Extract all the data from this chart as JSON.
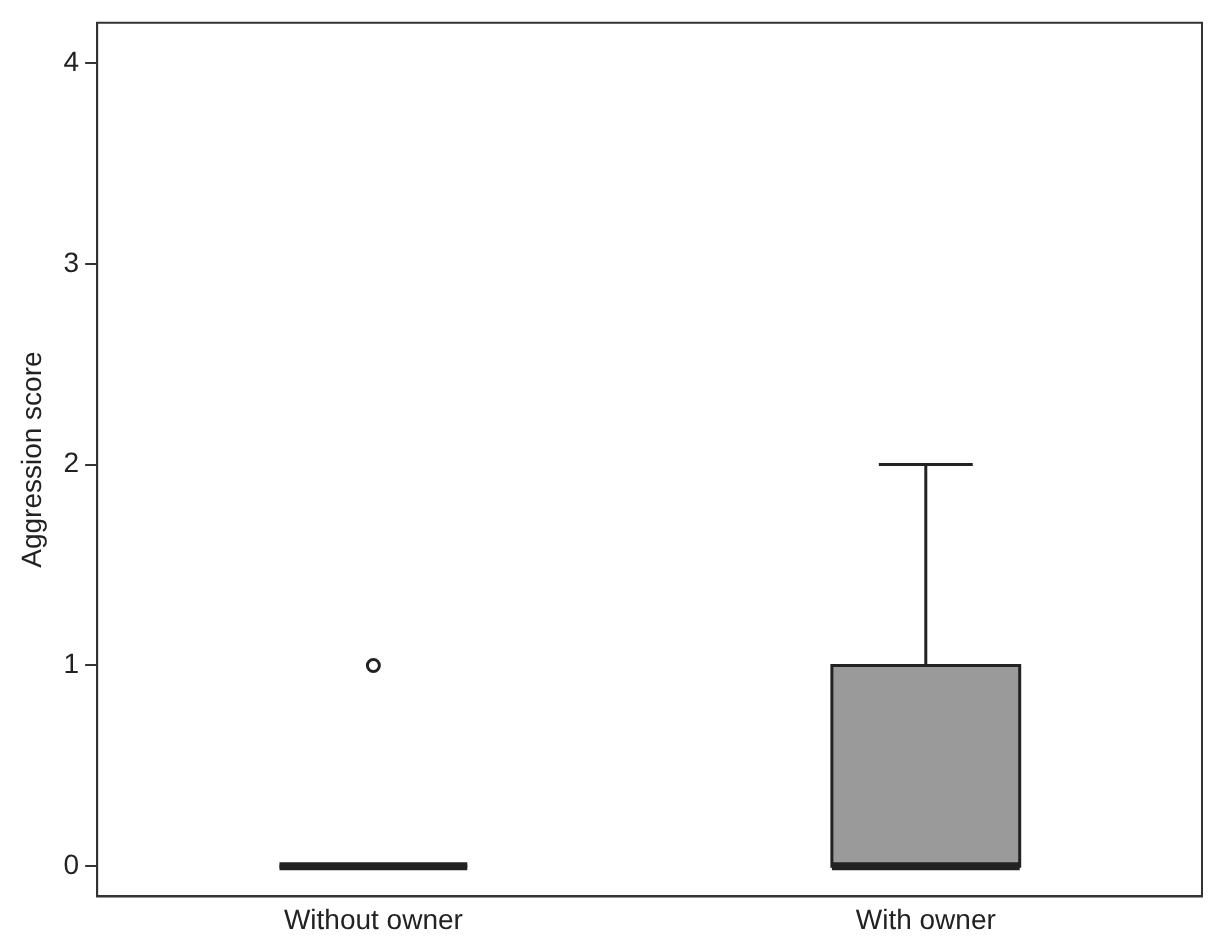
{
  "chart_data": {
    "type": "box",
    "ylabel": "Aggression score",
    "categories": [
      "Without owner",
      "With owner"
    ],
    "boxes": [
      {
        "low": 0,
        "q1": 0,
        "median": 0,
        "q3": 0,
        "high": 0,
        "outliers": [
          1
        ]
      },
      {
        "low": 0,
        "q1": 0,
        "median": 0,
        "q3": 1,
        "high": 2
      }
    ],
    "colors": [
      "#222222",
      "#9a9a9a"
    ],
    "marker": "circle",
    "ylim": [
      -0.15,
      4.2
    ],
    "yticks": [
      0,
      1,
      2,
      3,
      4
    ],
    "grid": false,
    "legend": false
  }
}
